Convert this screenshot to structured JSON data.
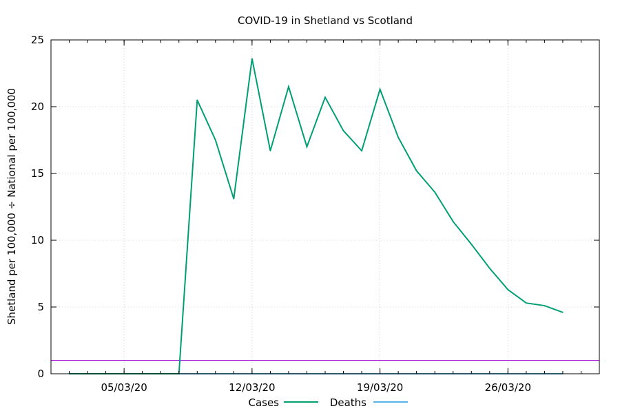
{
  "chart_data": {
    "type": "line",
    "title": "COVID-19 in Shetland vs Scotland",
    "xlabel": "",
    "ylabel": "Shetland per 100,000 ÷ National per 100,000",
    "ylim": [
      0,
      25
    ],
    "yticks": [
      0,
      5,
      10,
      15,
      20,
      25
    ],
    "x_tick_labels": [
      "05/03/20",
      "12/03/20",
      "19/03/20",
      "26/03/20"
    ],
    "x": [
      "2020-03-02",
      "2020-03-03",
      "2020-03-04",
      "2020-03-05",
      "2020-03-06",
      "2020-03-07",
      "2020-03-08",
      "2020-03-09",
      "2020-03-10",
      "2020-03-11",
      "2020-03-12",
      "2020-03-13",
      "2020-03-14",
      "2020-03-15",
      "2020-03-16",
      "2020-03-17",
      "2020-03-18",
      "2020-03-19",
      "2020-03-20",
      "2020-03-21",
      "2020-03-22",
      "2020-03-23",
      "2020-03-24",
      "2020-03-25",
      "2020-03-26",
      "2020-03-27",
      "2020-03-28",
      "2020-03-29"
    ],
    "xlim": [
      "2020-03-01",
      "2020-03-31"
    ],
    "grid": true,
    "legend_position": "bottom",
    "series": [
      {
        "name": "Cases",
        "color": "#009e73",
        "values": [
          0,
          0,
          0,
          0,
          0,
          0,
          0,
          20.5,
          17.5,
          13.1,
          23.6,
          16.7,
          21.5,
          17.0,
          20.7,
          18.2,
          16.7,
          21.3,
          17.7,
          15.2,
          13.6,
          11.4,
          9.7,
          7.9,
          6.3,
          5.3,
          5.1,
          4.6
        ]
      },
      {
        "name": "Deaths",
        "color": "#56b4e9",
        "values": [
          0,
          0,
          0,
          0,
          0,
          0,
          0,
          0,
          0,
          0,
          0,
          0,
          0,
          0,
          0,
          0,
          0,
          0,
          0,
          0,
          0,
          0,
          0,
          0,
          0,
          0,
          0,
          0
        ]
      }
    ],
    "reference_line": {
      "y": 1,
      "color": "#9400d3"
    }
  }
}
